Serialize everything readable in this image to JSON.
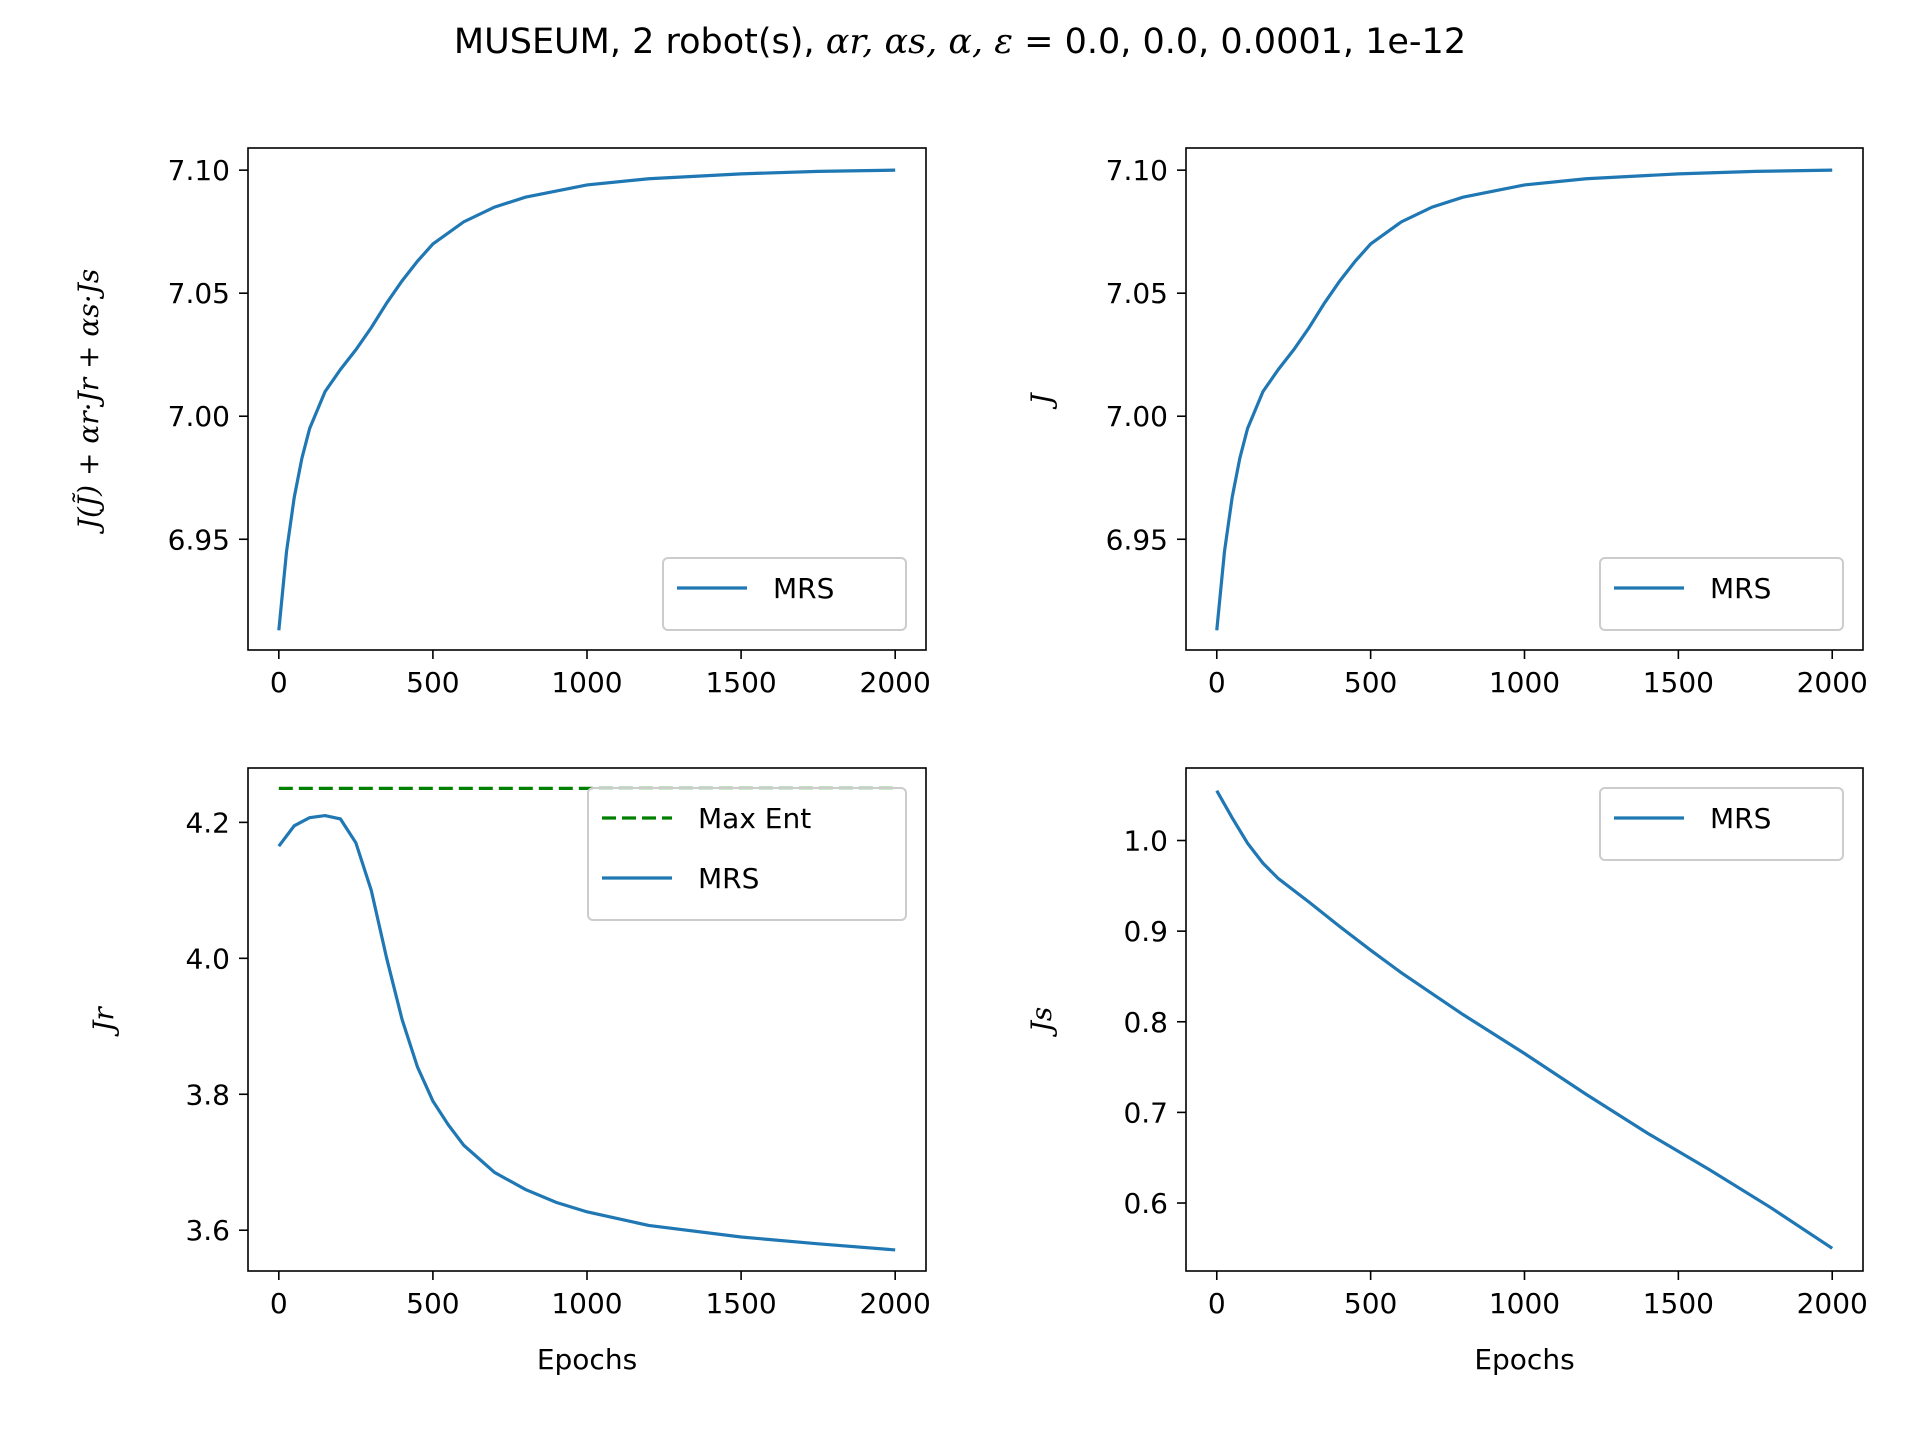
{
  "figure": {
    "title_prefix": "MUSEUM, 2 robot(s), ",
    "title_symbols": "αr, αs, α, ε",
    "title_suffix": " = 0.0, 0.0, 0.0001, 1e-12"
  },
  "colors": {
    "series": "#1f77b4",
    "max_ent": "#008000",
    "axes": "#000000"
  },
  "chart_data": [
    {
      "type": "line",
      "xlabel": "",
      "ylabel": "J(J̃) + αr·Jr + αs·Js",
      "xlim": [
        -100,
        2100
      ],
      "ylim": [
        6.905,
        7.109
      ],
      "xticks": [
        0,
        500,
        1000,
        1500,
        2000
      ],
      "xtick_labels": [
        "0",
        "500",
        "1000",
        "1500",
        "2000"
      ],
      "yticks": [
        6.95,
        7.0,
        7.05,
        7.1
      ],
      "ytick_labels": [
        "6.95",
        "7.00",
        "7.05",
        "7.10"
      ],
      "legend_position": "lower-right",
      "series": [
        {
          "name": "MRS",
          "style": "solid",
          "x": [
            0,
            25,
            50,
            75,
            100,
            150,
            200,
            250,
            300,
            350,
            400,
            450,
            500,
            600,
            700,
            800,
            1000,
            1200,
            1500,
            1750,
            2000
          ],
          "y": [
            6.913,
            6.945,
            6.967,
            6.983,
            6.995,
            7.01,
            7.019,
            7.027,
            7.036,
            7.046,
            7.055,
            7.063,
            7.07,
            7.079,
            7.085,
            7.089,
            7.094,
            7.0965,
            7.0985,
            7.0995,
            7.1
          ]
        }
      ]
    },
    {
      "type": "line",
      "xlabel": "",
      "ylabel": "J",
      "xlim": [
        -100,
        2100
      ],
      "ylim": [
        6.905,
        7.109
      ],
      "xticks": [
        0,
        500,
        1000,
        1500,
        2000
      ],
      "xtick_labels": [
        "0",
        "500",
        "1000",
        "1500",
        "2000"
      ],
      "yticks": [
        6.95,
        7.0,
        7.05,
        7.1
      ],
      "ytick_labels": [
        "6.95",
        "7.00",
        "7.05",
        "7.10"
      ],
      "legend_position": "lower-right",
      "series": [
        {
          "name": "MRS",
          "style": "solid",
          "x": [
            0,
            25,
            50,
            75,
            100,
            150,
            200,
            250,
            300,
            350,
            400,
            450,
            500,
            600,
            700,
            800,
            1000,
            1200,
            1500,
            1750,
            2000
          ],
          "y": [
            6.913,
            6.945,
            6.967,
            6.983,
            6.995,
            7.01,
            7.019,
            7.027,
            7.036,
            7.046,
            7.055,
            7.063,
            7.07,
            7.079,
            7.085,
            7.089,
            7.094,
            7.0965,
            7.0985,
            7.0995,
            7.1
          ]
        }
      ]
    },
    {
      "type": "line",
      "xlabel": "Epochs",
      "ylabel": "Jr",
      "xlim": [
        -100,
        2100
      ],
      "ylim": [
        3.54,
        4.28
      ],
      "xticks": [
        0,
        500,
        1000,
        1500,
        2000
      ],
      "xtick_labels": [
        "0",
        "500",
        "1000",
        "1500",
        "2000"
      ],
      "yticks": [
        3.6,
        3.8,
        4.0,
        4.2
      ],
      "ytick_labels": [
        "3.6",
        "3.8",
        "4.0",
        "4.2"
      ],
      "legend_position": "top-right",
      "series": [
        {
          "name": "Max Ent",
          "style": "dashed",
          "x": [
            0,
            2000
          ],
          "y": [
            4.25,
            4.25
          ]
        },
        {
          "name": "MRS",
          "style": "solid",
          "x": [
            0,
            50,
            100,
            150,
            200,
            250,
            300,
            350,
            400,
            450,
            500,
            550,
            600,
            700,
            800,
            900,
            1000,
            1200,
            1500,
            1750,
            2000
          ],
          "y": [
            4.165,
            4.195,
            4.207,
            4.21,
            4.205,
            4.17,
            4.1,
            4.0,
            3.91,
            3.84,
            3.79,
            3.755,
            3.725,
            3.685,
            3.66,
            3.641,
            3.627,
            3.607,
            3.59,
            3.58,
            3.571
          ]
        }
      ]
    },
    {
      "type": "line",
      "xlabel": "Epochs",
      "ylabel": "Js",
      "xlim": [
        -100,
        2100
      ],
      "ylim": [
        0.525,
        1.08
      ],
      "xticks": [
        0,
        500,
        1000,
        1500,
        2000
      ],
      "xtick_labels": [
        "0",
        "500",
        "1000",
        "1500",
        "2000"
      ],
      "yticks": [
        0.6,
        0.7,
        0.8,
        0.9,
        1.0
      ],
      "ytick_labels": [
        "0.6",
        "0.7",
        "0.8",
        "0.9",
        "1.0"
      ],
      "legend_position": "top-right",
      "series": [
        {
          "name": "MRS",
          "style": "solid",
          "x": [
            0,
            50,
            100,
            150,
            200,
            300,
            400,
            500,
            600,
            700,
            800,
            1000,
            1200,
            1400,
            1600,
            1800,
            2000
          ],
          "y": [
            1.055,
            1.025,
            0.997,
            0.975,
            0.958,
            0.932,
            0.905,
            0.879,
            0.854,
            0.831,
            0.808,
            0.765,
            0.72,
            0.677,
            0.637,
            0.595,
            0.55
          ]
        }
      ]
    }
  ]
}
